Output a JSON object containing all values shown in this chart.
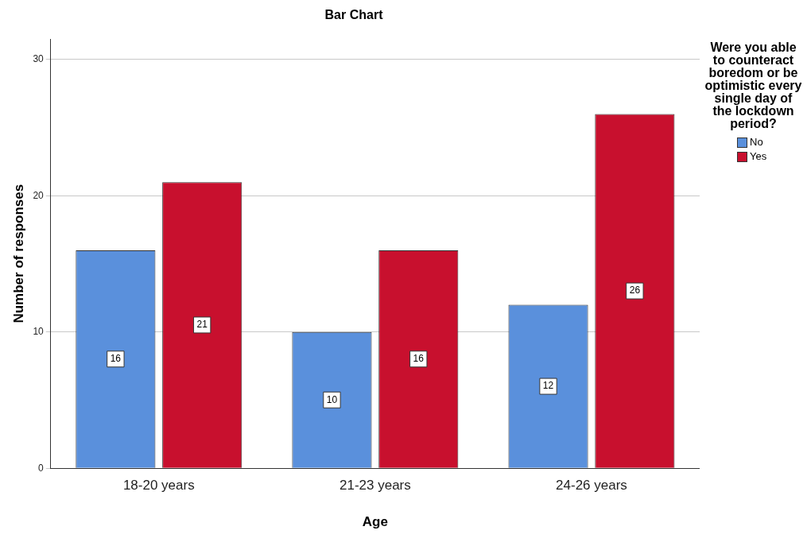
{
  "chart_data": {
    "type": "bar",
    "title": "Bar Chart",
    "xlabel": "Age",
    "ylabel": "Number of responses",
    "legend_title": "Were you able to counteract boredom or be optimistic every single day of the lockdown period?",
    "categories": [
      "18-20 years",
      "21-23 years",
      "24-26 years"
    ],
    "series": [
      {
        "name": "No",
        "color": "#5a90dc",
        "values": [
          16,
          10,
          12
        ]
      },
      {
        "name": "Yes",
        "color": "#c8102e",
        "values": [
          21,
          16,
          26
        ]
      }
    ],
    "ylim": [
      0,
      31.5
    ],
    "yticks": [
      0,
      10,
      20,
      30
    ],
    "grid": "y",
    "legend": "right",
    "data_labels": true
  }
}
